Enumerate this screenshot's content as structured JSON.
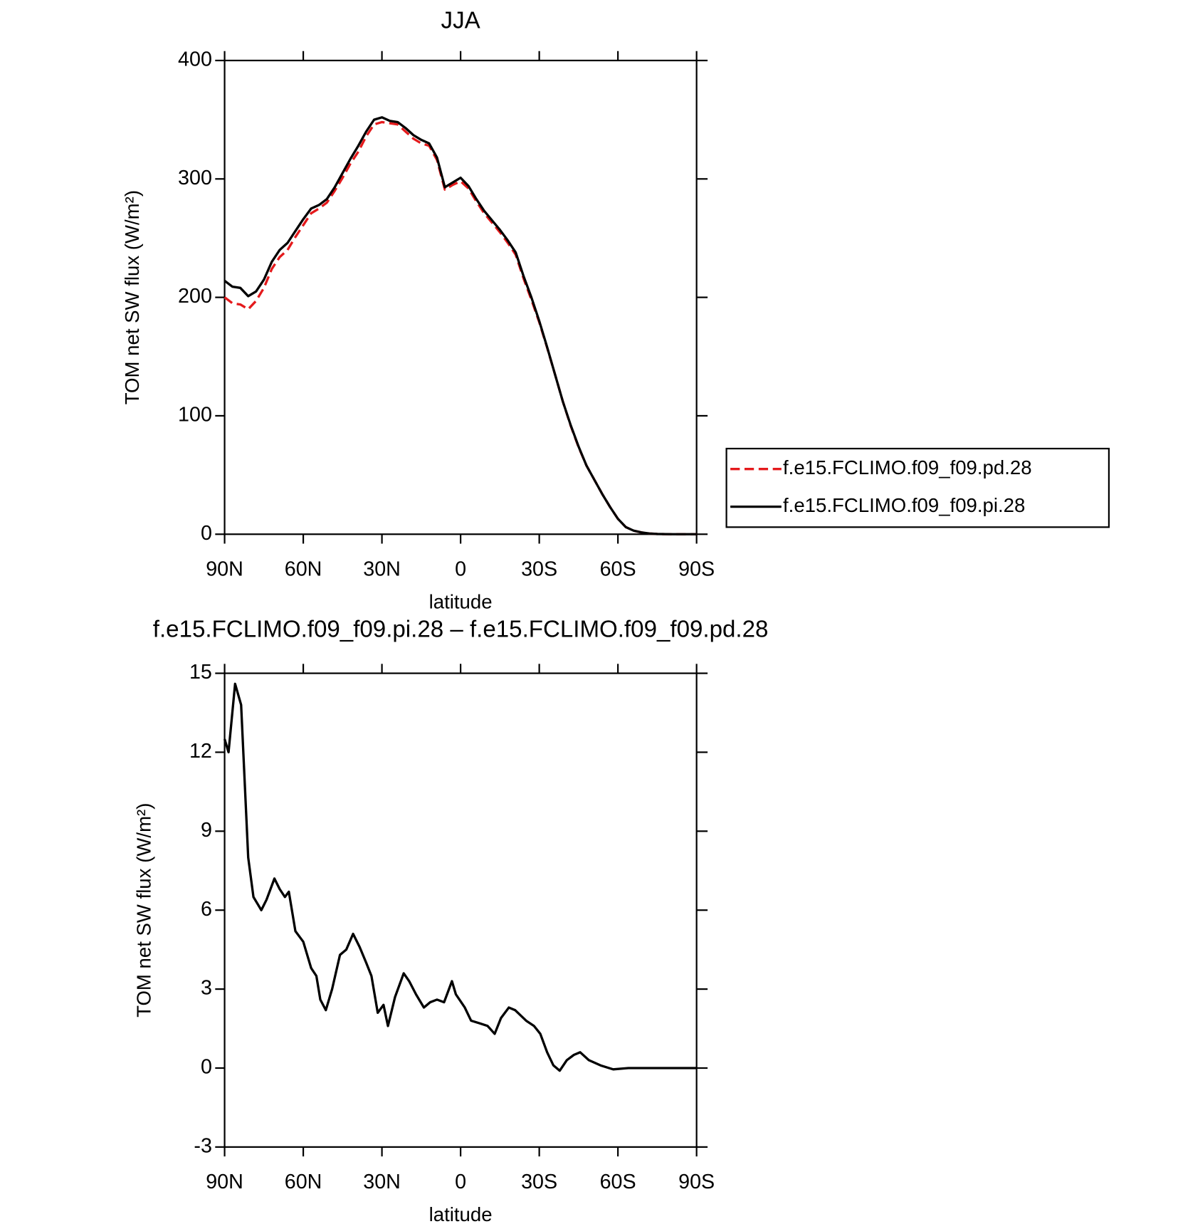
{
  "chart_data": [
    {
      "type": "line",
      "title": "JJA",
      "xlabel": "latitude",
      "ylabel": "TOM net SW flux (W/m²)",
      "x": [
        90,
        87,
        84,
        81,
        78,
        75,
        72,
        69,
        66,
        63,
        60,
        57,
        54,
        51,
        48,
        45,
        42,
        39,
        36,
        33,
        30,
        27,
        24,
        21,
        18,
        15,
        12,
        9,
        6,
        3,
        0,
        -3,
        -6,
        -9,
        -12,
        -15,
        -18,
        -21,
        -24,
        -27,
        -30,
        -33,
        -36,
        -39,
        -42,
        -45,
        -48,
        -51,
        -54,
        -57,
        -60,
        -63,
        -66,
        -69,
        -72,
        -75,
        -78,
        -81,
        -84,
        -87,
        -90
      ],
      "series": [
        {
          "name": "f.e15.FCLIMO.f09_f09.pd.28",
          "color": "#e41a1c",
          "line_style": "dashed",
          "values": [
            200,
            195,
            194,
            190,
            197,
            208,
            224,
            234,
            240,
            251,
            261,
            271,
            275,
            280,
            290,
            301,
            313,
            323,
            336,
            346,
            348,
            347,
            346,
            340,
            334,
            330,
            328,
            316,
            291,
            295,
            298,
            292,
            281,
            271,
            263,
            255,
            246,
            236,
            216,
            198,
            179,
            157.5,
            135,
            112,
            91.5,
            73.5,
            58,
            46,
            34,
            23,
            13,
            6,
            3,
            1.5,
            0.6,
            0.2,
            0.1,
            0,
            0,
            0,
            0
          ]
        },
        {
          "name": "f.e15.FCLIMO.f09_f09.pi.28",
          "color": "#000000",
          "line_style": "solid",
          "values": [
            214,
            209,
            208,
            201,
            205,
            215,
            230,
            240,
            246,
            256,
            266,
            275,
            278,
            283,
            293,
            305,
            317,
            328,
            340,
            350,
            352,
            349,
            348,
            343,
            337,
            333,
            330,
            318,
            293,
            297,
            301,
            294,
            283,
            273,
            265,
            257,
            248,
            238,
            218,
            200,
            180,
            158,
            135,
            112,
            92,
            74,
            58,
            46,
            34,
            23,
            13,
            6,
            3,
            1.5,
            0.6,
            0.2,
            0.1,
            0,
            0,
            0,
            0
          ]
        }
      ],
      "xlim": [
        90,
        -90
      ],
      "xticks": [
        {
          "value": 90,
          "label": "90N"
        },
        {
          "value": 60,
          "label": "60N"
        },
        {
          "value": 30,
          "label": "30N"
        },
        0,
        {
          "value": -30,
          "label": "30S"
        },
        {
          "value": -60,
          "label": "60S"
        },
        {
          "value": -90,
          "label": "90S"
        }
      ],
      "ylim": [
        0,
        400
      ],
      "yticks": [
        0,
        100,
        200,
        300,
        400
      ],
      "grid": false,
      "legend": "right"
    },
    {
      "type": "line",
      "title": "f.e15.FCLIMO.f09_f09.pi.28 – f.e15.FCLIMO.f09_f09.pd.28",
      "xlabel": "latitude",
      "ylabel": "TOM net SW flux (W/m²)",
      "x": [
        90,
        88.5,
        86,
        83.7,
        81,
        79,
        76,
        74,
        71,
        69,
        67,
        65.5,
        63,
        60,
        57,
        55,
        53.5,
        51.4,
        49,
        46,
        43.6,
        41,
        38.5,
        36,
        34,
        31.6,
        29.4,
        27.7,
        25,
        21.7,
        19.6,
        17,
        14,
        11.6,
        9,
        6.3,
        3.3,
        1.8,
        -1.6,
        -4,
        -7.3,
        -10.3,
        -13,
        -15.4,
        -18.4,
        -20.8,
        -22.9,
        -25,
        -28,
        -30.4,
        -33,
        -35.4,
        -37.8,
        -40.5,
        -43.2,
        -45.6,
        -48.9,
        -53.4,
        -58.2,
        -64,
        -90
      ],
      "values": [
        12.5,
        12,
        14.6,
        13.8,
        8,
        6.5,
        6,
        6.4,
        7.2,
        6.8,
        6.5,
        6.7,
        5.2,
        4.8,
        3.8,
        3.5,
        2.6,
        2.2,
        3,
        4.3,
        4.5,
        5.1,
        4.6,
        4,
        3.5,
        2.1,
        2.4,
        1.6,
        2.7,
        3.6,
        3.3,
        2.8,
        2.3,
        2.5,
        2.6,
        2.5,
        3.3,
        2.8,
        2.3,
        1.8,
        1.7,
        1.6,
        1.3,
        1.9,
        2.3,
        2.2,
        2,
        1.8,
        1.6,
        1.3,
        0.6,
        0.1,
        -0.1,
        0.3,
        0.5,
        0.6,
        0.3,
        0.1,
        -0.05,
        0,
        0
      ],
      "color": "#000000",
      "xlim": [
        90,
        -90
      ],
      "xticks": [
        {
          "value": 90,
          "label": "90N"
        },
        {
          "value": 60,
          "label": "60N"
        },
        {
          "value": 30,
          "label": "30N"
        },
        0,
        {
          "value": -30,
          "label": "30S"
        },
        {
          "value": -60,
          "label": "60S"
        },
        {
          "value": -90,
          "label": "90S"
        }
      ],
      "ylim": [
        -3,
        15
      ],
      "yticks": [
        -3,
        0,
        3,
        6,
        9,
        12,
        15
      ],
      "grid": false
    }
  ]
}
